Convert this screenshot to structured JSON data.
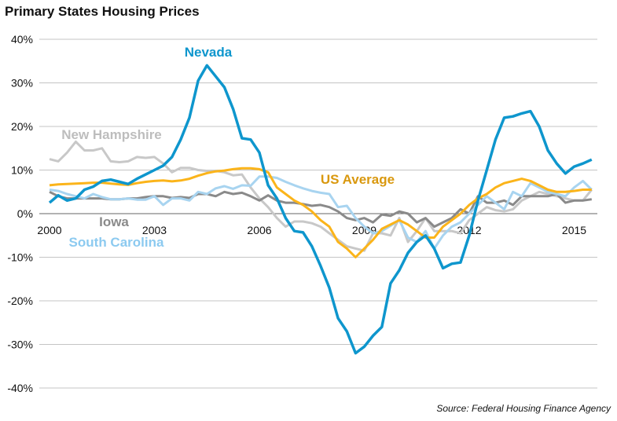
{
  "chart_data": {
    "type": "line",
    "title": "Primary States Housing Prices",
    "source": "Source: Federal Housing Finance Agency",
    "ylim": [
      -40,
      40
    ],
    "y_ticks": [
      "40%",
      "30%",
      "20%",
      "10%",
      "0%",
      "-10%",
      "-20%",
      "-30%",
      "-40%"
    ],
    "y_tick_values": [
      40,
      30,
      20,
      10,
      0,
      -10,
      -20,
      -30,
      -40
    ],
    "x_ticks": [
      "2000",
      "2003",
      "2006",
      "2009",
      "2012",
      "2015"
    ],
    "x_start": 2000,
    "x_step": 0.25,
    "xlim": [
      2000,
      2015.5
    ],
    "grid": true,
    "series": [
      {
        "name": "New Hampshire",
        "color": "#c8c8c8",
        "label_color": "#bdbdbd",
        "values": [
          12.5,
          12,
          14,
          16.5,
          14.5,
          14.5,
          15,
          12,
          11.8,
          12,
          13,
          12.8,
          13,
          11.5,
          9.5,
          10.5,
          10.5,
          10,
          9.8,
          9.8,
          9.5,
          8.8,
          9,
          6,
          3.5,
          1.5,
          -1,
          -3,
          -1.8,
          -1.8,
          -2.2,
          -3,
          -4.5,
          -6,
          -7.5,
          -8,
          -8.5,
          -4.5,
          -4.5,
          -5,
          -1,
          -6.5,
          -4,
          -1,
          -4,
          -4,
          -4,
          -4.5,
          -1.5,
          0,
          1.5,
          0.8,
          0.5,
          1,
          3,
          4,
          5,
          4.5,
          4,
          3.5,
          3,
          3,
          5.5
        ]
      },
      {
        "name": "Iowa",
        "color": "#8a8a8a",
        "label_color": "#8a8a8a",
        "values": [
          5,
          4,
          3.5,
          3.5,
          3.5,
          3.5,
          3.5,
          3.3,
          3.3,
          3.5,
          3.5,
          3.8,
          4,
          4,
          3.6,
          3.8,
          3.6,
          4.5,
          4.5,
          4,
          5,
          4.5,
          4.8,
          4,
          3,
          4.2,
          3,
          2.5,
          2.5,
          2.2,
          1.8,
          2,
          1.5,
          0.5,
          -1,
          -1.5,
          -1,
          -2,
          -0.2,
          -0.5,
          0.5,
          0,
          -2,
          -1,
          -3,
          -2,
          -1,
          1,
          0,
          4,
          2.5,
          2.5,
          3,
          2,
          4,
          4,
          4,
          4,
          4.5,
          2.5,
          3,
          3,
          3.3
        ]
      },
      {
        "name": "South Carolina",
        "color": "#a8d4f0",
        "label_color": "#8ccaf0",
        "values": [
          5.5,
          5.2,
          4.5,
          4,
          3.5,
          4.5,
          3.8,
          3.3,
          3.3,
          3.5,
          3.2,
          3.2,
          4,
          2,
          3.5,
          3.5,
          3,
          5,
          4.5,
          5.8,
          6.3,
          5.7,
          6.5,
          6.4,
          8.5,
          8.5,
          8.2,
          7.3,
          6.5,
          5.8,
          5.2,
          4.8,
          4.5,
          1.5,
          1.8,
          -1,
          -3,
          -4.5,
          -4,
          -2.8,
          -1.5,
          -5.5,
          -6.5,
          -4,
          -8,
          -5,
          -3,
          -2,
          0,
          2,
          4,
          2.5,
          1,
          5,
          4,
          7,
          6,
          5,
          4.5,
          4,
          6,
          7.5,
          5.5
        ]
      },
      {
        "name": "US Average",
        "color": "#fbb41a",
        "label_color": "#d9980e",
        "values": [
          6.5,
          6.7,
          6.8,
          6.9,
          7.0,
          7.1,
          7.1,
          6.9,
          6.7,
          6.6,
          7.0,
          7.3,
          7.5,
          7.6,
          7.4,
          7.6,
          8.0,
          8.7,
          9.3,
          9.7,
          9.9,
          10.2,
          10.4,
          10.4,
          10.2,
          9.5,
          6,
          4.5,
          3,
          2,
          0.5,
          -1.5,
          -3,
          -6.5,
          -8,
          -10,
          -8,
          -6,
          -3.5,
          -2.5,
          -1.5,
          -2.5,
          -4,
          -5.5,
          -5.5,
          -3,
          -1.5,
          0,
          2,
          3.5,
          4.5,
          6,
          7,
          7.5,
          8,
          7.5,
          6.5,
          5.5,
          5,
          5,
          5.2,
          5.5,
          5.5
        ]
      },
      {
        "name": "Nevada",
        "color": "#0e96cd",
        "label_color": "#0e96cd",
        "values": [
          2.5,
          4.2,
          3,
          3.5,
          5.5,
          6.2,
          7.5,
          7.8,
          7.3,
          6.8,
          8,
          9,
          10,
          11,
          13,
          17,
          22,
          30.5,
          34,
          31.5,
          29,
          24,
          17.3,
          17,
          14,
          6.5,
          3.5,
          -1,
          -4,
          -4.3,
          -7.5,
          -12,
          -17,
          -24,
          -27,
          -32,
          -30.5,
          -28,
          -26,
          -16,
          -13,
          -9,
          -6.5,
          -5,
          -8,
          -12.5,
          -11.5,
          -11.2,
          -5,
          3,
          10,
          17,
          22,
          22.3,
          23,
          23.5,
          20,
          14.5,
          11.5,
          9.2,
          10.8,
          11.5,
          12.4
        ]
      }
    ]
  }
}
